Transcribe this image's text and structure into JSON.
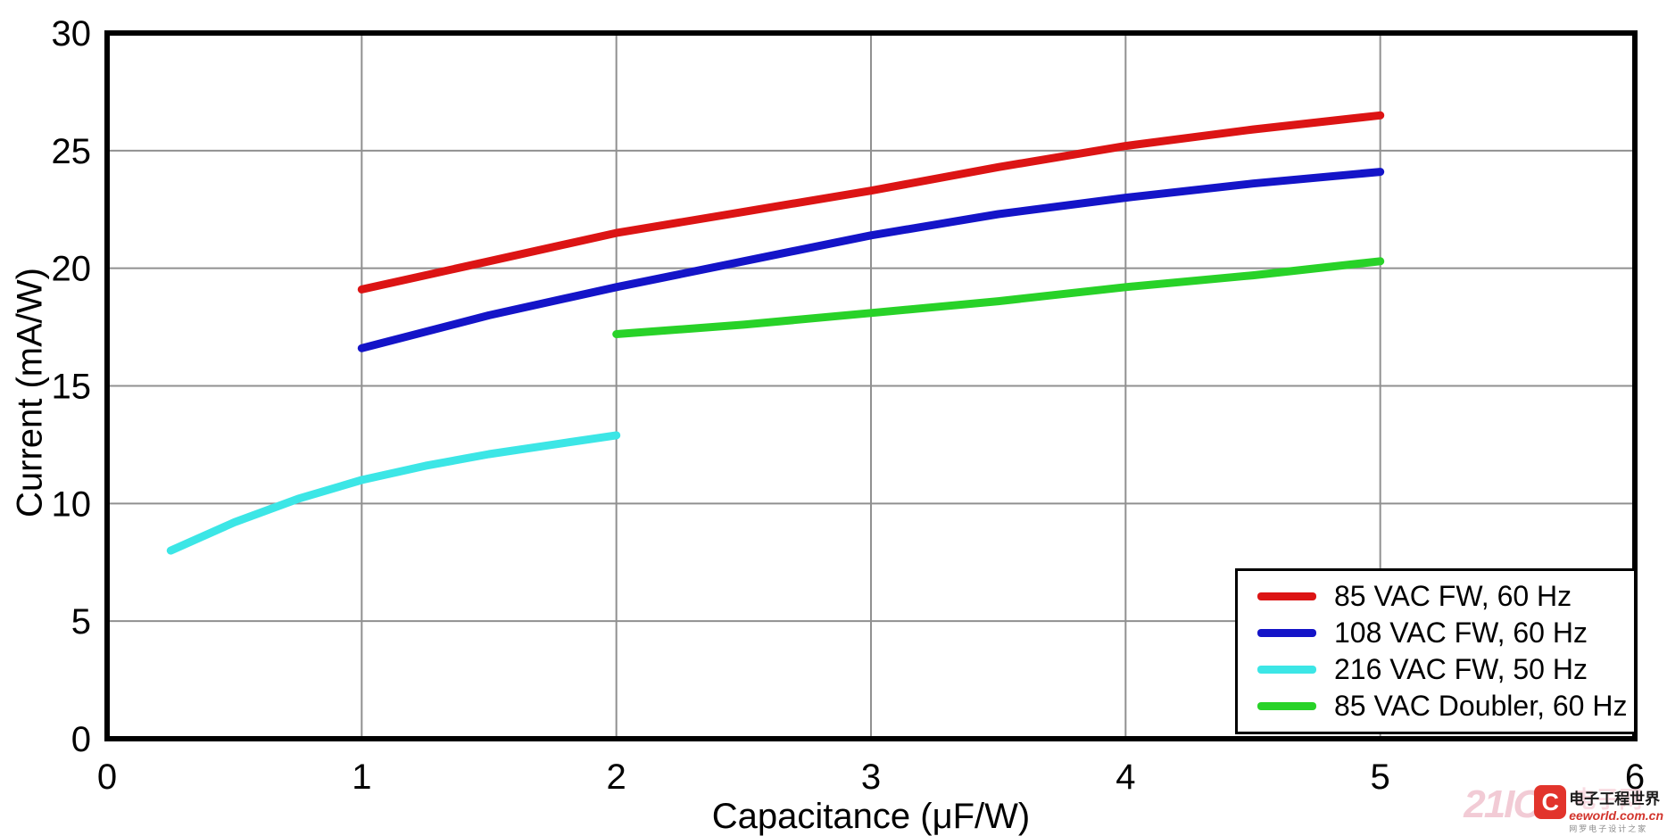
{
  "chart_data": {
    "type": "line",
    "title": "",
    "xlabel": "Capacitance (μF/W)",
    "ylabel": "Current (mA/W)",
    "xlim": [
      0,
      6
    ],
    "ylim": [
      0,
      30
    ],
    "xticks": [
      0,
      1,
      2,
      3,
      4,
      5,
      6
    ],
    "yticks": [
      0,
      5,
      10,
      15,
      20,
      25,
      30
    ],
    "grid": true,
    "gridline_color": "#909090",
    "frame_color": "#000000",
    "legend_position": "bottom-right",
    "series": [
      {
        "name": "85 VAC FW, 60 Hz",
        "color": "#dc1414",
        "points": [
          [
            1,
            19.1
          ],
          [
            1.5,
            20.3
          ],
          [
            2,
            21.5
          ],
          [
            2.5,
            22.4
          ],
          [
            3,
            23.3
          ],
          [
            3.5,
            24.3
          ],
          [
            4,
            25.2
          ],
          [
            4.5,
            25.9
          ],
          [
            5,
            26.5
          ]
        ]
      },
      {
        "name": "108 VAC FW, 60 Hz",
        "color": "#1414c8",
        "points": [
          [
            1,
            16.6
          ],
          [
            1.5,
            18.0
          ],
          [
            2,
            19.2
          ],
          [
            2.5,
            20.3
          ],
          [
            3,
            21.4
          ],
          [
            3.5,
            22.3
          ],
          [
            4,
            23.0
          ],
          [
            4.5,
            23.6
          ],
          [
            5,
            24.1
          ]
        ]
      },
      {
        "name": "216 VAC FW, 50 Hz",
        "color": "#3ce6e6",
        "points": [
          [
            0.25,
            8.0
          ],
          [
            0.5,
            9.2
          ],
          [
            0.75,
            10.2
          ],
          [
            1,
            11.0
          ],
          [
            1.25,
            11.6
          ],
          [
            1.5,
            12.1
          ],
          [
            1.75,
            12.5
          ],
          [
            2,
            12.9
          ]
        ]
      },
      {
        "name": "85 VAC Doubler, 60 Hz",
        "color": "#28d228",
        "points": [
          [
            2,
            17.2
          ],
          [
            2.5,
            17.6
          ],
          [
            3,
            18.1
          ],
          [
            3.5,
            18.6
          ],
          [
            4,
            19.2
          ],
          [
            4.5,
            19.7
          ],
          [
            5,
            20.3
          ]
        ]
      }
    ]
  },
  "watermark": {
    "site_text": "21IC",
    "site_color": "#e8a2b4",
    "logo_letter": "C",
    "logo_color": "#e2342c",
    "brand_cn": "电子工程世界",
    "ghost_text": "电子网",
    "ghost_color": "#f0a8b8",
    "domain": "eeworld.com.cn",
    "domain_color": "#d2342c",
    "slogan": "网罗电子设计之家"
  }
}
